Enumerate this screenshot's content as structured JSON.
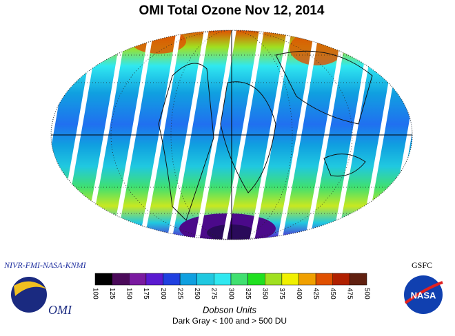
{
  "title": "OMI Total Ozone Nov 12, 2014",
  "left_logo": {
    "header": "NIVR-FMI-NASA-KNMI",
    "label": "OMI"
  },
  "right_logo": {
    "header": "GSFC",
    "label": "NASA"
  },
  "colorbar": {
    "colors": [
      "#000000",
      "#4b0a5a",
      "#7a1aa0",
      "#5a1ad0",
      "#2040e0",
      "#10a0e0",
      "#20c8e0",
      "#30e8f0",
      "#40e070",
      "#20e020",
      "#a0e020",
      "#f0f000",
      "#f0a000",
      "#e05000",
      "#b02000",
      "#602010"
    ],
    "ticks": [
      100,
      125,
      150,
      175,
      200,
      225,
      250,
      275,
      300,
      325,
      350,
      375,
      400,
      425,
      450,
      475,
      500
    ],
    "units": "Dobson Units",
    "note": "Dark Gray < 100 and > 500 DU"
  }
}
